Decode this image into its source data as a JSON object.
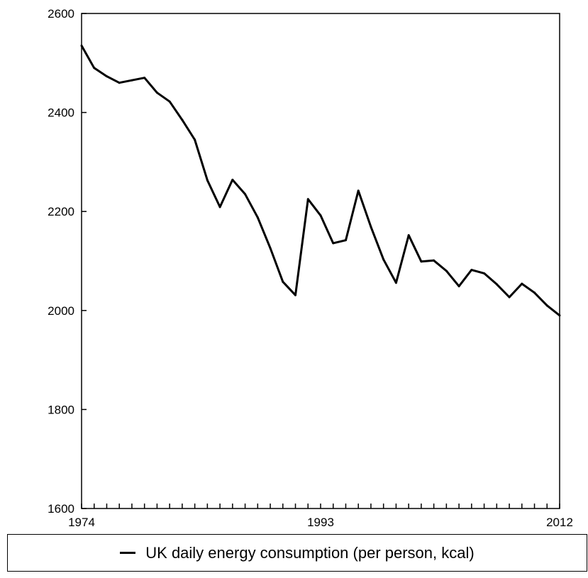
{
  "chart_data": {
    "type": "line",
    "title": "",
    "xlabel": "",
    "ylabel": "",
    "x_ticks": [
      "1974",
      "1993",
      "2012"
    ],
    "y_ticks": [
      "1600",
      "1800",
      "2000",
      "2200",
      "2400",
      "2600"
    ],
    "xlim": [
      1974,
      2012
    ],
    "ylim": [
      1600,
      2600
    ],
    "grid": false,
    "legend_position": "bottom",
    "series": [
      {
        "name": "UK daily energy consumption (per person, kcal)",
        "color": "#000000",
        "x": [
          1974,
          1975,
          1976,
          1977,
          1978,
          1979,
          1980,
          1981,
          1982,
          1983,
          1984,
          1985,
          1986,
          1987,
          1988,
          1989,
          1990,
          1991,
          1992,
          1993,
          1994,
          1995,
          1996,
          1997,
          1998,
          1999,
          2000,
          2001,
          2002,
          2003,
          2004,
          2005,
          2006,
          2007,
          2008,
          2009,
          2010,
          2011,
          2012
        ],
        "values": [
          2535,
          2490,
          2473,
          2460,
          2465,
          2470,
          2440,
          2422,
          2385,
          2345,
          2263,
          2209,
          2264,
          2235,
          2188,
          2126,
          2058,
          2031,
          2225,
          2192,
          2136,
          2142,
          2242,
          2169,
          2103,
          2056,
          2152,
          2099,
          2101,
          2080,
          2049,
          2082,
          2075,
          2053,
          2027,
          2054,
          2036,
          2010,
          1990
        ]
      }
    ]
  }
}
